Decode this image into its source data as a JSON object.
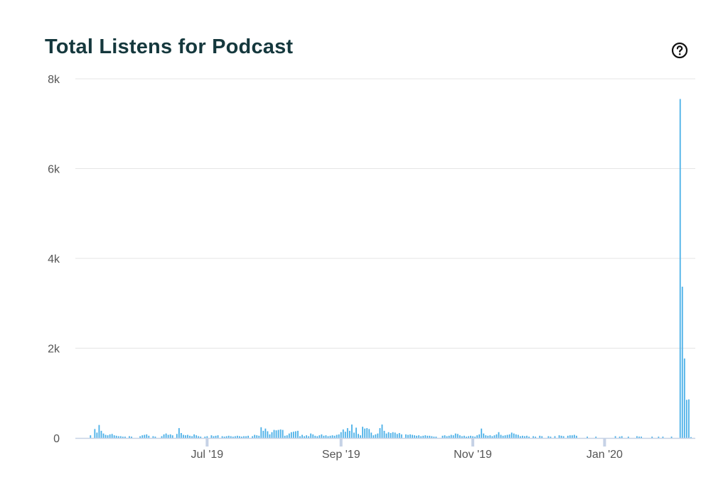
{
  "page": {
    "title": "Total Listens for Podcast",
    "help_icon": "question-circle-icon"
  },
  "colors": {
    "bar": "#4db1e8",
    "grid": "#e5e5e5",
    "axis": "#c6d2e6",
    "title": "#15383d",
    "tick_label": "#555555"
  },
  "chart_data": {
    "type": "bar",
    "title": "Total Listens for Podcast",
    "xlabel": "",
    "ylabel": "",
    "ylim": [
      0,
      8000
    ],
    "y_ticks": [
      0,
      2000,
      4000,
      6000,
      8000
    ],
    "y_tick_labels": [
      "0",
      "2k",
      "4k",
      "6k",
      "8k"
    ],
    "x_tick_labels": [
      {
        "date": "2019-07-01",
        "label": "Jul '19"
      },
      {
        "date": "2019-09-01",
        "label": "Sep '19"
      },
      {
        "date": "2019-11-01",
        "label": "Nov '19"
      },
      {
        "date": "2020-01-01",
        "label": "Jan '20"
      }
    ],
    "grid": true,
    "legend": "none",
    "series": [
      {
        "values": [
          [
            "2019-05-08",
            60
          ],
          [
            "2019-05-10",
            200
          ],
          [
            "2019-05-11",
            120
          ],
          [
            "2019-05-12",
            290
          ],
          [
            "2019-05-13",
            160
          ],
          [
            "2019-05-14",
            100
          ],
          [
            "2019-05-15",
            70
          ],
          [
            "2019-05-16",
            60
          ],
          [
            "2019-05-17",
            80
          ],
          [
            "2019-05-18",
            90
          ],
          [
            "2019-05-19",
            60
          ],
          [
            "2019-05-20",
            50
          ],
          [
            "2019-05-21",
            40
          ],
          [
            "2019-05-22",
            40
          ],
          [
            "2019-05-23",
            30
          ],
          [
            "2019-05-24",
            30
          ],
          [
            "2019-05-26",
            40
          ],
          [
            "2019-05-27",
            30
          ],
          [
            "2019-05-31",
            40
          ],
          [
            "2019-06-01",
            60
          ],
          [
            "2019-06-02",
            70
          ],
          [
            "2019-06-03",
            80
          ],
          [
            "2019-06-04",
            50
          ],
          [
            "2019-06-06",
            40
          ],
          [
            "2019-06-07",
            30
          ],
          [
            "2019-06-10",
            40
          ],
          [
            "2019-06-11",
            80
          ],
          [
            "2019-06-12",
            100
          ],
          [
            "2019-06-13",
            70
          ],
          [
            "2019-06-14",
            80
          ],
          [
            "2019-06-15",
            60
          ],
          [
            "2019-06-17",
            90
          ],
          [
            "2019-06-18",
            220
          ],
          [
            "2019-06-19",
            110
          ],
          [
            "2019-06-20",
            70
          ],
          [
            "2019-06-21",
            60
          ],
          [
            "2019-06-22",
            70
          ],
          [
            "2019-06-23",
            50
          ],
          [
            "2019-06-24",
            40
          ],
          [
            "2019-06-25",
            80
          ],
          [
            "2019-06-26",
            60
          ],
          [
            "2019-06-27",
            40
          ],
          [
            "2019-06-28",
            30
          ],
          [
            "2019-06-30",
            30
          ],
          [
            "2019-07-01",
            40
          ],
          [
            "2019-07-03",
            60
          ],
          [
            "2019-07-04",
            40
          ],
          [
            "2019-07-05",
            50
          ],
          [
            "2019-07-06",
            60
          ],
          [
            "2019-07-08",
            40
          ],
          [
            "2019-07-09",
            30
          ],
          [
            "2019-07-10",
            40
          ],
          [
            "2019-07-11",
            50
          ],
          [
            "2019-07-12",
            40
          ],
          [
            "2019-07-13",
            30
          ],
          [
            "2019-07-14",
            40
          ],
          [
            "2019-07-15",
            50
          ],
          [
            "2019-07-16",
            40
          ],
          [
            "2019-07-17",
            30
          ],
          [
            "2019-07-18",
            40
          ],
          [
            "2019-07-19",
            40
          ],
          [
            "2019-07-20",
            50
          ],
          [
            "2019-07-22",
            40
          ],
          [
            "2019-07-23",
            70
          ],
          [
            "2019-07-24",
            60
          ],
          [
            "2019-07-25",
            50
          ],
          [
            "2019-07-26",
            240
          ],
          [
            "2019-07-27",
            160
          ],
          [
            "2019-07-28",
            210
          ],
          [
            "2019-07-29",
            150
          ],
          [
            "2019-07-30",
            80
          ],
          [
            "2019-07-31",
            130
          ],
          [
            "2019-08-01",
            180
          ],
          [
            "2019-08-02",
            170
          ],
          [
            "2019-08-03",
            180
          ],
          [
            "2019-08-04",
            190
          ],
          [
            "2019-08-05",
            180
          ],
          [
            "2019-08-06",
            50
          ],
          [
            "2019-08-07",
            60
          ],
          [
            "2019-08-08",
            100
          ],
          [
            "2019-08-09",
            130
          ],
          [
            "2019-08-10",
            140
          ],
          [
            "2019-08-11",
            150
          ],
          [
            "2019-08-12",
            160
          ],
          [
            "2019-08-13",
            40
          ],
          [
            "2019-08-14",
            70
          ],
          [
            "2019-08-15",
            40
          ],
          [
            "2019-08-16",
            60
          ],
          [
            "2019-08-17",
            40
          ],
          [
            "2019-08-18",
            100
          ],
          [
            "2019-08-19",
            80
          ],
          [
            "2019-08-20",
            50
          ],
          [
            "2019-08-21",
            40
          ],
          [
            "2019-08-22",
            60
          ],
          [
            "2019-08-23",
            80
          ],
          [
            "2019-08-24",
            50
          ],
          [
            "2019-08-25",
            60
          ],
          [
            "2019-08-26",
            40
          ],
          [
            "2019-08-27",
            50
          ],
          [
            "2019-08-28",
            60
          ],
          [
            "2019-08-29",
            50
          ],
          [
            "2019-08-30",
            70
          ],
          [
            "2019-08-31",
            80
          ],
          [
            "2019-09-01",
            130
          ],
          [
            "2019-09-02",
            190
          ],
          [
            "2019-09-03",
            140
          ],
          [
            "2019-09-04",
            220
          ],
          [
            "2019-09-05",
            160
          ],
          [
            "2019-09-06",
            300
          ],
          [
            "2019-09-07",
            120
          ],
          [
            "2019-09-08",
            230
          ],
          [
            "2019-09-09",
            90
          ],
          [
            "2019-09-10",
            60
          ],
          [
            "2019-09-11",
            250
          ],
          [
            "2019-09-12",
            210
          ],
          [
            "2019-09-13",
            220
          ],
          [
            "2019-09-14",
            200
          ],
          [
            "2019-09-15",
            120
          ],
          [
            "2019-09-16",
            60
          ],
          [
            "2019-09-17",
            80
          ],
          [
            "2019-09-18",
            100
          ],
          [
            "2019-09-19",
            220
          ],
          [
            "2019-09-20",
            300
          ],
          [
            "2019-09-21",
            160
          ],
          [
            "2019-09-22",
            100
          ],
          [
            "2019-09-23",
            130
          ],
          [
            "2019-09-24",
            110
          ],
          [
            "2019-09-25",
            130
          ],
          [
            "2019-09-26",
            120
          ],
          [
            "2019-09-27",
            90
          ],
          [
            "2019-09-28",
            110
          ],
          [
            "2019-09-29",
            80
          ],
          [
            "2019-10-01",
            80
          ],
          [
            "2019-10-02",
            70
          ],
          [
            "2019-10-03",
            80
          ],
          [
            "2019-10-04",
            70
          ],
          [
            "2019-10-05",
            60
          ],
          [
            "2019-10-06",
            50
          ],
          [
            "2019-10-07",
            60
          ],
          [
            "2019-10-08",
            40
          ],
          [
            "2019-10-09",
            50
          ],
          [
            "2019-10-10",
            60
          ],
          [
            "2019-10-11",
            50
          ],
          [
            "2019-10-12",
            50
          ],
          [
            "2019-10-13",
            40
          ],
          [
            "2019-10-14",
            30
          ],
          [
            "2019-10-15",
            30
          ],
          [
            "2019-10-18",
            50
          ],
          [
            "2019-10-19",
            60
          ],
          [
            "2019-10-20",
            40
          ],
          [
            "2019-10-21",
            50
          ],
          [
            "2019-10-22",
            70
          ],
          [
            "2019-10-23",
            60
          ],
          [
            "2019-10-24",
            100
          ],
          [
            "2019-10-25",
            90
          ],
          [
            "2019-10-26",
            60
          ],
          [
            "2019-10-27",
            40
          ],
          [
            "2019-10-28",
            50
          ],
          [
            "2019-10-29",
            30
          ],
          [
            "2019-10-30",
            40
          ],
          [
            "2019-10-31",
            50
          ],
          [
            "2019-11-01",
            40
          ],
          [
            "2019-11-02",
            30
          ],
          [
            "2019-11-03",
            60
          ],
          [
            "2019-11-04",
            80
          ],
          [
            "2019-11-05",
            210
          ],
          [
            "2019-11-06",
            100
          ],
          [
            "2019-11-07",
            60
          ],
          [
            "2019-11-08",
            50
          ],
          [
            "2019-11-09",
            60
          ],
          [
            "2019-11-10",
            40
          ],
          [
            "2019-11-11",
            60
          ],
          [
            "2019-11-12",
            80
          ],
          [
            "2019-11-13",
            130
          ],
          [
            "2019-11-14",
            70
          ],
          [
            "2019-11-15",
            50
          ],
          [
            "2019-11-16",
            60
          ],
          [
            "2019-11-17",
            70
          ],
          [
            "2019-11-18",
            80
          ],
          [
            "2019-11-19",
            120
          ],
          [
            "2019-11-20",
            100
          ],
          [
            "2019-11-21",
            80
          ],
          [
            "2019-11-22",
            70
          ],
          [
            "2019-11-23",
            40
          ],
          [
            "2019-11-24",
            50
          ],
          [
            "2019-11-25",
            40
          ],
          [
            "2019-11-26",
            50
          ],
          [
            "2019-11-27",
            30
          ],
          [
            "2019-11-29",
            40
          ],
          [
            "2019-11-30",
            30
          ],
          [
            "2019-12-02",
            50
          ],
          [
            "2019-12-03",
            40
          ],
          [
            "2019-12-06",
            40
          ],
          [
            "2019-12-07",
            30
          ],
          [
            "2019-12-09",
            40
          ],
          [
            "2019-12-11",
            60
          ],
          [
            "2019-12-12",
            50
          ],
          [
            "2019-12-13",
            40
          ],
          [
            "2019-12-15",
            50
          ],
          [
            "2019-12-16",
            60
          ],
          [
            "2019-12-17",
            60
          ],
          [
            "2019-12-18",
            70
          ],
          [
            "2019-12-19",
            50
          ],
          [
            "2019-12-24",
            30
          ],
          [
            "2019-12-28",
            30
          ],
          [
            "2020-01-06",
            40
          ],
          [
            "2020-01-08",
            30
          ],
          [
            "2020-01-09",
            40
          ],
          [
            "2020-01-12",
            30
          ],
          [
            "2020-01-16",
            40
          ],
          [
            "2020-01-17",
            30
          ],
          [
            "2020-01-18",
            30
          ],
          [
            "2020-01-23",
            30
          ],
          [
            "2020-01-26",
            30
          ],
          [
            "2020-01-28",
            30
          ],
          [
            "2020-02-01",
            30
          ],
          [
            "2020-02-05",
            7550
          ],
          [
            "2020-02-06",
            3370
          ],
          [
            "2020-02-07",
            1770
          ],
          [
            "2020-02-08",
            850
          ],
          [
            "2020-02-09",
            860
          ],
          [
            "2020-02-10",
            20
          ]
        ]
      }
    ]
  }
}
